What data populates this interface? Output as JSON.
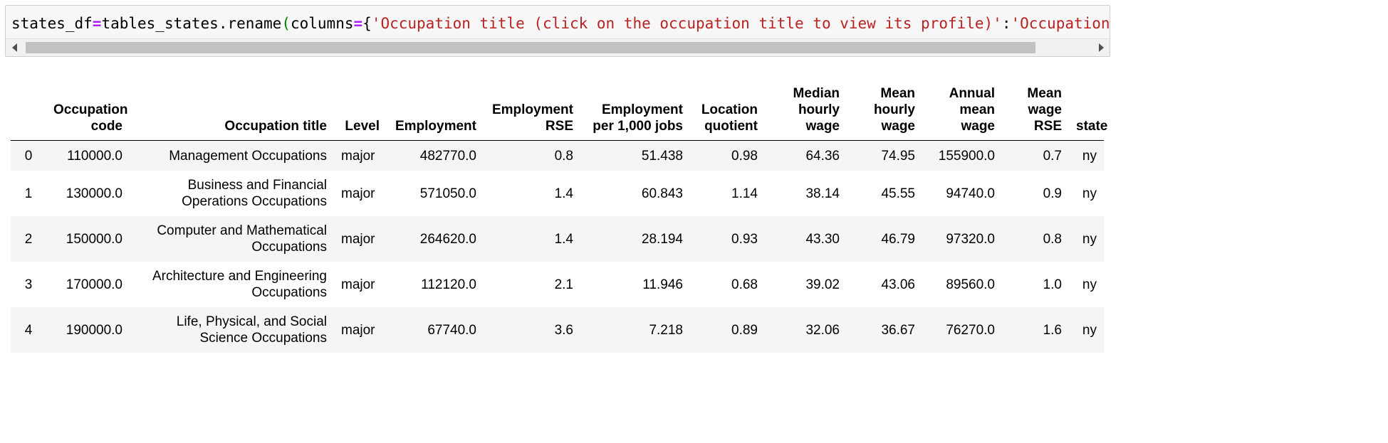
{
  "code_cell": {
    "tokens": [
      {
        "text": "states_df",
        "cls": ""
      },
      {
        "text": "=",
        "cls": "tok-op"
      },
      {
        "text": "tables_states.rename",
        "cls": ""
      },
      {
        "text": "(",
        "cls": "tok-paren"
      },
      {
        "text": "columns",
        "cls": ""
      },
      {
        "text": "=",
        "cls": "tok-op"
      },
      {
        "text": "{",
        "cls": ""
      },
      {
        "text": "'Occupation title (click on the occupation title to view its profile)'",
        "cls": "tok-str"
      },
      {
        "text": ":",
        "cls": ""
      },
      {
        "text": "'Occupation ti",
        "cls": "tok-str"
      }
    ]
  },
  "table": {
    "columns": [
      {
        "lines": [
          ""
        ]
      },
      {
        "lines": [
          "Occupation",
          "code"
        ]
      },
      {
        "lines": [
          "Occupation title"
        ]
      },
      {
        "lines": [
          "Level"
        ]
      },
      {
        "lines": [
          "Employment"
        ]
      },
      {
        "lines": [
          "Employment",
          "RSE"
        ]
      },
      {
        "lines": [
          "Employment",
          "per 1,000 jobs"
        ]
      },
      {
        "lines": [
          "Location",
          "quotient"
        ]
      },
      {
        "lines": [
          "Median",
          "hourly",
          "wage"
        ]
      },
      {
        "lines": [
          "Mean",
          "hourly",
          "wage"
        ]
      },
      {
        "lines": [
          "Annual",
          "mean",
          "wage"
        ]
      },
      {
        "lines": [
          "Mean",
          "wage",
          "RSE"
        ]
      },
      {
        "lines": [
          "state"
        ]
      }
    ],
    "rows": [
      [
        "0",
        "110000.0",
        [
          "Management Occupations"
        ],
        "major",
        "482770.0",
        "0.8",
        "51.438",
        "0.98",
        "64.36",
        "74.95",
        "155900.0",
        "0.7",
        "ny"
      ],
      [
        "1",
        "130000.0",
        [
          "Business and Financial",
          "Operations Occupations"
        ],
        "major",
        "571050.0",
        "1.4",
        "60.843",
        "1.14",
        "38.14",
        "45.55",
        "94740.0",
        "0.9",
        "ny"
      ],
      [
        "2",
        "150000.0",
        [
          "Computer and Mathematical",
          "Occupations"
        ],
        "major",
        "264620.0",
        "1.4",
        "28.194",
        "0.93",
        "43.30",
        "46.79",
        "97320.0",
        "0.8",
        "ny"
      ],
      [
        "3",
        "170000.0",
        [
          "Architecture and Engineering",
          "Occupations"
        ],
        "major",
        "112120.0",
        "2.1",
        "11.946",
        "0.68",
        "39.02",
        "43.06",
        "89560.0",
        "1.0",
        "ny"
      ],
      [
        "4",
        "190000.0",
        [
          "Life, Physical, and Social",
          "Science Occupations"
        ],
        "major",
        "67740.0",
        "3.6",
        "7.218",
        "0.89",
        "32.06",
        "36.67",
        "76270.0",
        "1.6",
        "ny"
      ]
    ]
  }
}
